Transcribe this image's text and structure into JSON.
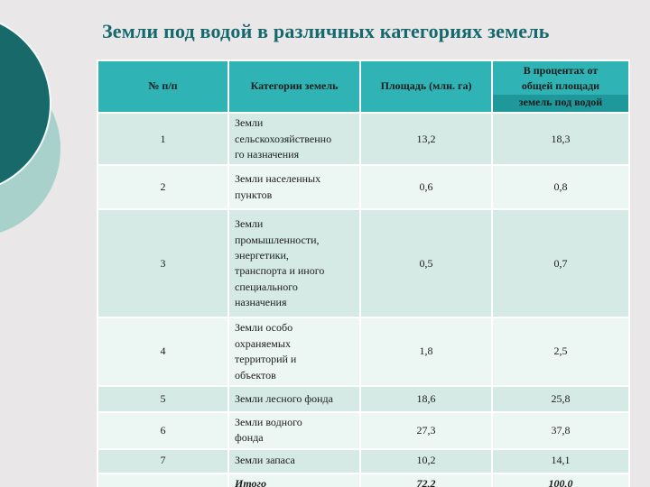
{
  "slide": {
    "title": "Земли под водой в различных категориях земель"
  },
  "table": {
    "columns": [
      "№ п/п",
      "Категории земель",
      "Площадь (млн. га)",
      "В процентах от\nобщей площади\nземель под водой"
    ],
    "rows": [
      {
        "num": "1",
        "category": "Земли\nсельскохозяйственно\nго назначения",
        "area": "13,2",
        "percent": "18,3"
      },
      {
        "num": "2",
        "category": "Земли населенных\nпунктов",
        "area": "0,6",
        "percent": "0,8"
      },
      {
        "num": "3",
        "category": "Земли\nпромышленности,\nэнергетики,\nтранспорта и иного\nспециального\nназначения",
        "area": "0,5",
        "percent": "0,7"
      },
      {
        "num": "4",
        "category": "Земли особо\nохраняемых\nтерриторий и\nобъектов",
        "area": "1,8",
        "percent": "2,5"
      },
      {
        "num": "5",
        "category": "Земли лесного фонда",
        "area": "18,6",
        "percent": "25,8"
      },
      {
        "num": "6",
        "category": "Земли водного\nфонда",
        "area": "27,3",
        "percent": "37,8"
      },
      {
        "num": "7",
        "category": "Земли запаса",
        "area": "10,2",
        "percent": "14,1"
      }
    ],
    "total": {
      "num": "",
      "label": "Итого",
      "area": "72,2",
      "percent": "100,0"
    }
  },
  "colors": {
    "slide_background": "#e9e7e7",
    "header_teal": "#2fb3b4",
    "header_dark_band": "#1f989b",
    "row_tint": "#d5eae5",
    "row_light": "#ecf6f3",
    "title_color": "#15696e",
    "circle_dark": "#17696a",
    "circle_light": "#a9d1cb",
    "grid_line": "#ffffff"
  }
}
